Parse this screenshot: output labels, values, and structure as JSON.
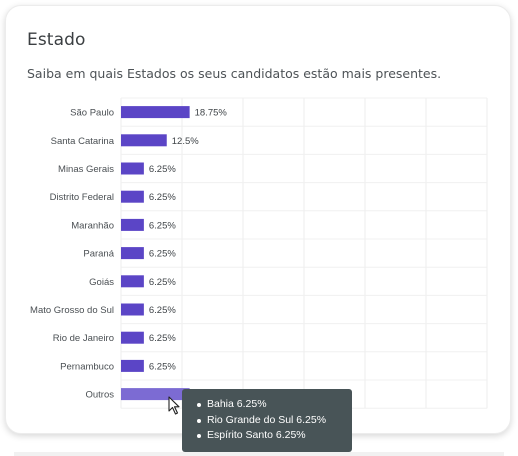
{
  "card": {
    "title": "Estado",
    "subtitle": "Saiba em quais Estados os seus candidatos estão mais presentes."
  },
  "chart_data": {
    "type": "bar",
    "orientation": "horizontal",
    "categories": [
      "São Paulo",
      "Santa Catarina",
      "Minas Gerais",
      "Distrito Federal",
      "Maranhão",
      "Paraná",
      "Goiás",
      "Mato Grosso do Sul",
      "Rio de Janeiro",
      "Pernambuco",
      "Outros"
    ],
    "values": [
      18.75,
      12.5,
      6.25,
      6.25,
      6.25,
      6.25,
      6.25,
      6.25,
      6.25,
      6.25,
      18.75
    ],
    "value_labels": [
      "18.75%",
      "12.5%",
      "6.25%",
      "6.25%",
      "6.25%",
      "6.25%",
      "6.25%",
      "6.25%",
      "6.25%",
      "6.25%",
      ""
    ],
    "xlim": [
      0,
      100
    ],
    "grid": true,
    "bar_color": "#5b45c6",
    "highlight_color": "#7c6bd3"
  },
  "tooltip": {
    "items": [
      "Bahia 6.25%",
      "Rio Grande do Sul 6.25%",
      "Espírito Santo 6.25%"
    ]
  }
}
